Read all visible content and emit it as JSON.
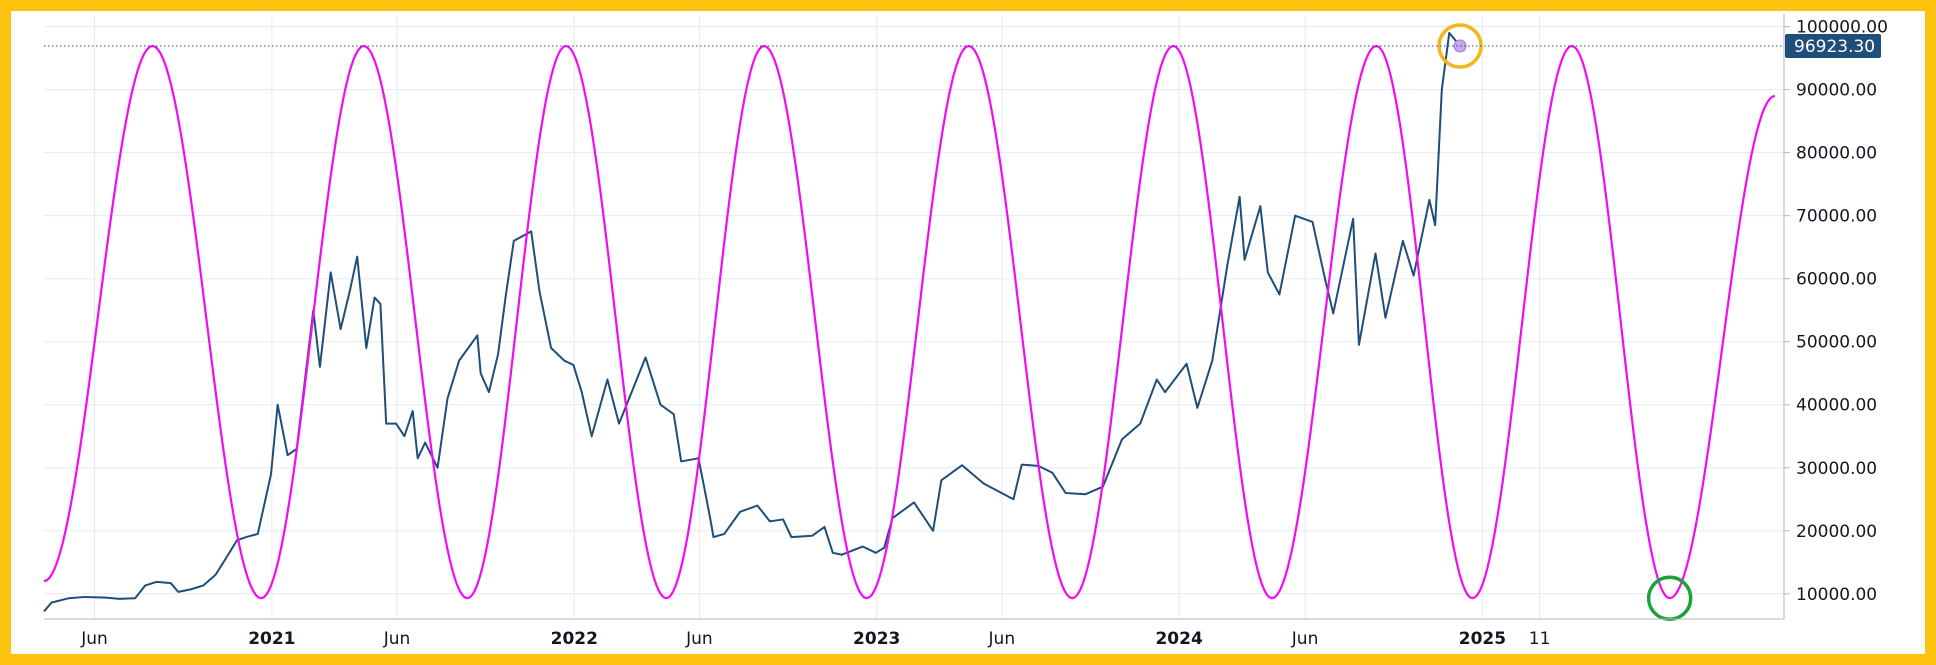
{
  "chart_data": {
    "type": "line",
    "title": "",
    "xlabel": "",
    "ylabel": "",
    "x_range": [
      "2020-04-01",
      "2025-12-31"
    ],
    "ylim": [
      6000,
      102000
    ],
    "grid": true,
    "y_ticks": [
      10000,
      20000,
      30000,
      40000,
      50000,
      60000,
      70000,
      80000,
      90000,
      100000
    ],
    "y_tick_labels": [
      "10000.00",
      "20000.00",
      "30000.00",
      "40000.00",
      "50000.00",
      "60000.00",
      "70000.00",
      "80000.00",
      "90000.00",
      "100000.00"
    ],
    "x_ticks": [
      {
        "label": "Jun",
        "date": "2020-06-01",
        "bold": false
      },
      {
        "label": "2021",
        "date": "2021-01-01",
        "bold": true
      },
      {
        "label": "Jun",
        "date": "2021-06-01",
        "bold": false
      },
      {
        "label": "2022",
        "date": "2022-01-01",
        "bold": true
      },
      {
        "label": "Jun",
        "date": "2022-06-01",
        "bold": false
      },
      {
        "label": "2023",
        "date": "2023-01-01",
        "bold": true
      },
      {
        "label": "Jun",
        "date": "2023-06-01",
        "bold": false
      },
      {
        "label": "2024",
        "date": "2024-01-01",
        "bold": true
      },
      {
        "label": "Jun",
        "date": "2024-06-01",
        "bold": false
      },
      {
        "label": "2025",
        "date": "2025-01-01",
        "bold": true
      },
      {
        "label": "11",
        "date": "2025-03-11",
        "bold": false
      }
    ],
    "last_value": 96923.3,
    "last_value_label": "96923.30",
    "series": [
      {
        "color": "#1e4e79",
        "points": [
          [
            "2020-04-01",
            7200
          ],
          [
            "2020-04-10",
            8600
          ],
          [
            "2020-05-01",
            9300
          ],
          [
            "2020-05-20",
            9500
          ],
          [
            "2020-06-15",
            9400
          ],
          [
            "2020-07-01",
            9200
          ],
          [
            "2020-07-20",
            9300
          ],
          [
            "2020-08-01",
            11300
          ],
          [
            "2020-08-15",
            11900
          ],
          [
            "2020-09-01",
            11700
          ],
          [
            "2020-09-10",
            10300
          ],
          [
            "2020-09-25",
            10700
          ],
          [
            "2020-10-10",
            11300
          ],
          [
            "2020-10-25",
            13000
          ],
          [
            "2020-11-05",
            15300
          ],
          [
            "2020-11-20",
            18500
          ],
          [
            "2020-12-01",
            19000
          ],
          [
            "2020-12-15",
            19500
          ],
          [
            "2020-12-31",
            29000
          ],
          [
            "2021-01-08",
            40000
          ],
          [
            "2021-01-20",
            32000
          ],
          [
            "2021-01-31",
            33000
          ],
          [
            "2021-02-10",
            44000
          ],
          [
            "2021-02-20",
            55000
          ],
          [
            "2021-02-28",
            46000
          ],
          [
            "2021-03-13",
            61000
          ],
          [
            "2021-03-25",
            52000
          ],
          [
            "2021-04-05",
            58000
          ],
          [
            "2021-04-14",
            63500
          ],
          [
            "2021-04-25",
            49000
          ],
          [
            "2021-05-05",
            57000
          ],
          [
            "2021-05-12",
            56000
          ],
          [
            "2021-05-19",
            37000
          ],
          [
            "2021-05-31",
            37000
          ],
          [
            "2021-06-10",
            35000
          ],
          [
            "2021-06-20",
            39000
          ],
          [
            "2021-06-26",
            31500
          ],
          [
            "2021-07-05",
            34000
          ],
          [
            "2021-07-20",
            30000
          ],
          [
            "2021-08-01",
            41000
          ],
          [
            "2021-08-15",
            47000
          ],
          [
            "2021-09-06",
            51000
          ],
          [
            "2021-09-10",
            45000
          ],
          [
            "2021-09-20",
            42000
          ],
          [
            "2021-10-01",
            48000
          ],
          [
            "2021-10-10",
            57000
          ],
          [
            "2021-10-20",
            66000
          ],
          [
            "2021-11-10",
            67500
          ],
          [
            "2021-11-20",
            58000
          ],
          [
            "2021-12-04",
            49000
          ],
          [
            "2021-12-20",
            47000
          ],
          [
            "2021-12-31",
            46300
          ],
          [
            "2022-01-10",
            42000
          ],
          [
            "2022-01-22",
            35000
          ],
          [
            "2022-02-10",
            44000
          ],
          [
            "2022-02-24",
            37000
          ],
          [
            "2022-03-28",
            47500
          ],
          [
            "2022-04-15",
            40000
          ],
          [
            "2022-05-01",
            38500
          ],
          [
            "2022-05-10",
            31000
          ],
          [
            "2022-05-31",
            31500
          ],
          [
            "2022-06-14",
            22000
          ],
          [
            "2022-06-18",
            19000
          ],
          [
            "2022-07-01",
            19500
          ],
          [
            "2022-07-20",
            23000
          ],
          [
            "2022-08-10",
            24000
          ],
          [
            "2022-08-25",
            21500
          ],
          [
            "2022-09-10",
            21800
          ],
          [
            "2022-09-20",
            19000
          ],
          [
            "2022-10-15",
            19200
          ],
          [
            "2022-10-30",
            20600
          ],
          [
            "2022-11-09",
            16500
          ],
          [
            "2022-11-20",
            16200
          ],
          [
            "2022-12-15",
            17500
          ],
          [
            "2022-12-31",
            16500
          ],
          [
            "2023-01-10",
            17300
          ],
          [
            "2023-01-20",
            22000
          ],
          [
            "2023-02-15",
            24500
          ],
          [
            "2023-03-10",
            20000
          ],
          [
            "2023-03-20",
            28000
          ],
          [
            "2023-04-14",
            30400
          ],
          [
            "2023-05-10",
            27500
          ],
          [
            "2023-06-15",
            25000
          ],
          [
            "2023-06-25",
            30500
          ],
          [
            "2023-07-15",
            30300
          ],
          [
            "2023-08-01",
            29200
          ],
          [
            "2023-08-17",
            26000
          ],
          [
            "2023-09-10",
            25800
          ],
          [
            "2023-10-01",
            27000
          ],
          [
            "2023-10-24",
            34500
          ],
          [
            "2023-11-15",
            37000
          ],
          [
            "2023-12-05",
            44000
          ],
          [
            "2023-12-15",
            42000
          ],
          [
            "2024-01-10",
            46500
          ],
          [
            "2024-01-23",
            39500
          ],
          [
            "2024-02-10",
            47000
          ],
          [
            "2024-02-28",
            62000
          ],
          [
            "2024-03-14",
            73000
          ],
          [
            "2024-03-20",
            63000
          ],
          [
            "2024-04-08",
            71500
          ],
          [
            "2024-04-17",
            61000
          ],
          [
            "2024-05-01",
            57500
          ],
          [
            "2024-05-20",
            70000
          ],
          [
            "2024-06-10",
            69000
          ],
          [
            "2024-06-25",
            60000
          ],
          [
            "2024-07-05",
            54500
          ],
          [
            "2024-07-29",
            69500
          ],
          [
            "2024-08-05",
            49500
          ],
          [
            "2024-08-25",
            64000
          ],
          [
            "2024-09-06",
            53800
          ],
          [
            "2024-09-27",
            66000
          ],
          [
            "2024-10-10",
            60500
          ],
          [
            "2024-10-29",
            72500
          ],
          [
            "2024-11-05",
            68500
          ],
          [
            "2024-11-13",
            90000
          ],
          [
            "2024-11-22",
            99000
          ],
          [
            "2024-12-05",
            96923.3
          ]
        ]
      },
      {
        "color": "#f20cf2",
        "curve": "cycle",
        "min": 9300,
        "max": 96923.3,
        "points": [
          [
            "2020-04-01",
            12000
          ],
          [
            "2020-08-10",
            96923.3
          ],
          [
            "2020-12-19",
            9300
          ],
          [
            "2021-04-22",
            96923.3
          ],
          [
            "2021-08-25",
            9300
          ],
          [
            "2021-12-22",
            96923.3
          ],
          [
            "2022-04-22",
            9300
          ],
          [
            "2022-08-18",
            96923.3
          ],
          [
            "2022-12-20",
            9300
          ],
          [
            "2023-04-22",
            96923.3
          ],
          [
            "2023-08-25",
            9300
          ],
          [
            "2023-12-25",
            96923.3
          ],
          [
            "2024-04-22",
            9300
          ],
          [
            "2024-08-26",
            96923.3
          ],
          [
            "2024-12-20",
            9300
          ],
          [
            "2025-04-19",
            96923.3
          ],
          [
            "2025-08-15",
            9300
          ],
          [
            "2025-12-20",
            89000
          ]
        ]
      }
    ],
    "annotations": [
      {
        "kind": "circle",
        "color": "#f5b51c",
        "date": "2024-12-05",
        "value": 96923.3
      },
      {
        "kind": "circle",
        "color": "#1aa33a",
        "date": "2025-08-15",
        "value": 9300
      }
    ],
    "price_line_color": "#1e4e79"
  }
}
